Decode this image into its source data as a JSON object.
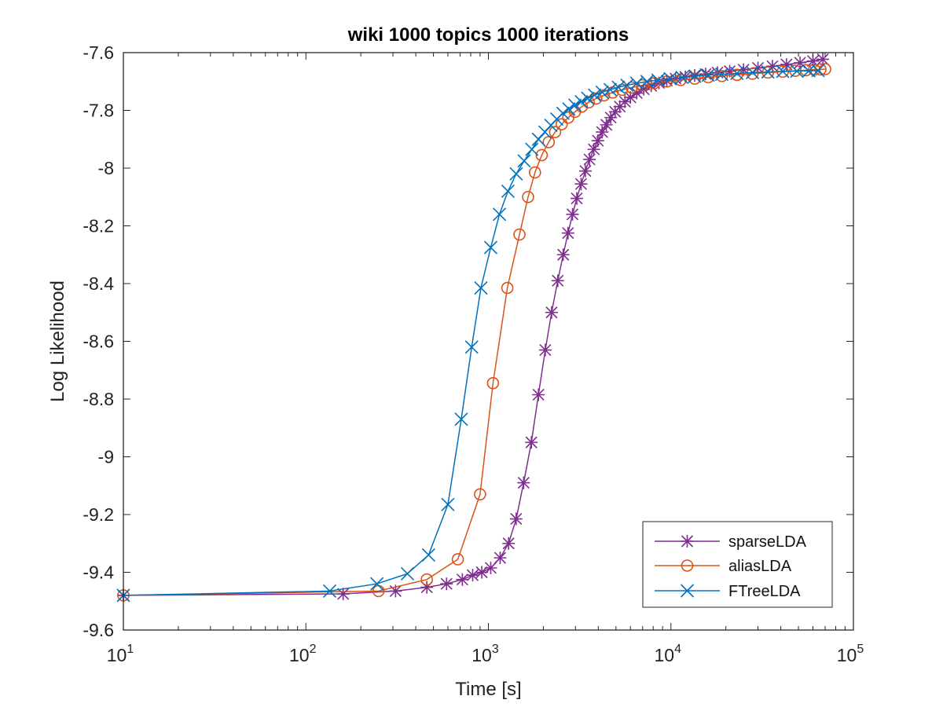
{
  "chart_data": {
    "type": "line",
    "title": "wiki 1000 topics 1000 iterations",
    "xlabel": "Time [s]",
    "ylabel": "Log Likelihood",
    "xscale": "log",
    "xlim": [
      10,
      100000
    ],
    "ylim": [
      -9.6,
      -7.6
    ],
    "x_ticks": [
      {
        "value": 10,
        "base": "10",
        "exp": "1"
      },
      {
        "value": 100,
        "base": "10",
        "exp": "2"
      },
      {
        "value": 1000,
        "base": "10",
        "exp": "3"
      },
      {
        "value": 10000,
        "base": "10",
        "exp": "4"
      },
      {
        "value": 100000,
        "base": "10",
        "exp": "5"
      }
    ],
    "y_ticks": [
      {
        "value": -7.6,
        "label": "-7.6"
      },
      {
        "value": -7.8,
        "label": "-7.8"
      },
      {
        "value": -8.0,
        "label": "-8"
      },
      {
        "value": -8.2,
        "label": "-8.2"
      },
      {
        "value": -8.4,
        "label": "-8.4"
      },
      {
        "value": -8.6,
        "label": "-8.6"
      },
      {
        "value": -8.8,
        "label": "-8.8"
      },
      {
        "value": -9.0,
        "label": "-9"
      },
      {
        "value": -9.2,
        "label": "-9.2"
      },
      {
        "value": -9.4,
        "label": "-9.4"
      },
      {
        "value": -9.6,
        "label": "-9.6"
      }
    ],
    "legend_position": "bottom-right",
    "series": [
      {
        "name": "sparseLDA",
        "color": "#7E2F8E",
        "marker": "asterisk",
        "points": [
          [
            10,
            -9.48
          ],
          [
            160,
            -9.475
          ],
          [
            310,
            -9.465
          ],
          [
            460,
            -9.452
          ],
          [
            590,
            -9.44
          ],
          [
            720,
            -9.425
          ],
          [
            820,
            -9.41
          ],
          [
            920,
            -9.4
          ],
          [
            1030,
            -9.385
          ],
          [
            1160,
            -9.35
          ],
          [
            1290,
            -9.3
          ],
          [
            1420,
            -9.215
          ],
          [
            1560,
            -9.09
          ],
          [
            1720,
            -8.95
          ],
          [
            1880,
            -8.785
          ],
          [
            2050,
            -8.63
          ],
          [
            2220,
            -8.5
          ],
          [
            2400,
            -8.39
          ],
          [
            2570,
            -8.3
          ],
          [
            2730,
            -8.225
          ],
          [
            2890,
            -8.16
          ],
          [
            3050,
            -8.105
          ],
          [
            3220,
            -8.055
          ],
          [
            3400,
            -8.01
          ],
          [
            3580,
            -7.97
          ],
          [
            3780,
            -7.935
          ],
          [
            3980,
            -7.905
          ],
          [
            4200,
            -7.875
          ],
          [
            4430,
            -7.85
          ],
          [
            4680,
            -7.825
          ],
          [
            4950,
            -7.805
          ],
          [
            5250,
            -7.787
          ],
          [
            5600,
            -7.77
          ],
          [
            6000,
            -7.755
          ],
          [
            6500,
            -7.74
          ],
          [
            7100,
            -7.727
          ],
          [
            7800,
            -7.715
          ],
          [
            8600,
            -7.705
          ],
          [
            9500,
            -7.697
          ],
          [
            10600,
            -7.69
          ],
          [
            12000,
            -7.684
          ],
          [
            13500,
            -7.679
          ],
          [
            15500,
            -7.674
          ],
          [
            18000,
            -7.669
          ],
          [
            21000,
            -7.664
          ],
          [
            25000,
            -7.659
          ],
          [
            30000,
            -7.653
          ],
          [
            36000,
            -7.647
          ],
          [
            43000,
            -7.641
          ],
          [
            51000,
            -7.635
          ],
          [
            60000,
            -7.629
          ],
          [
            68000,
            -7.623
          ]
        ]
      },
      {
        "name": "aliasLDA",
        "color": "#D95319",
        "marker": "circle",
        "points": [
          [
            10,
            -9.48
          ],
          [
            250,
            -9.465
          ],
          [
            460,
            -9.425
          ],
          [
            680,
            -9.355
          ],
          [
            900,
            -9.13
          ],
          [
            1060,
            -8.745
          ],
          [
            1270,
            -8.415
          ],
          [
            1480,
            -8.23
          ],
          [
            1650,
            -8.1
          ],
          [
            1800,
            -8.015
          ],
          [
            1960,
            -7.955
          ],
          [
            2140,
            -7.91
          ],
          [
            2320,
            -7.875
          ],
          [
            2520,
            -7.848
          ],
          [
            2740,
            -7.825
          ],
          [
            2980,
            -7.805
          ],
          [
            3250,
            -7.787
          ],
          [
            3550,
            -7.772
          ],
          [
            3900,
            -7.759
          ],
          [
            4300,
            -7.748
          ],
          [
            4800,
            -7.738
          ],
          [
            5400,
            -7.729
          ],
          [
            6100,
            -7.721
          ],
          [
            7000,
            -7.713
          ],
          [
            8100,
            -7.706
          ],
          [
            9500,
            -7.7
          ],
          [
            11300,
            -7.695
          ],
          [
            13500,
            -7.69
          ],
          [
            16000,
            -7.685
          ],
          [
            19000,
            -7.681
          ],
          [
            23000,
            -7.677
          ],
          [
            28000,
            -7.673
          ],
          [
            34000,
            -7.669
          ],
          [
            41000,
            -7.666
          ],
          [
            48000,
            -7.663
          ],
          [
            55000,
            -7.661
          ],
          [
            61000,
            -7.659
          ],
          [
            66000,
            -7.658
          ],
          [
            70000,
            -7.657
          ]
        ]
      },
      {
        "name": "FTreeLDA",
        "color": "#0072BD",
        "marker": "x",
        "points": [
          [
            10,
            -9.48
          ],
          [
            135,
            -9.465
          ],
          [
            245,
            -9.44
          ],
          [
            360,
            -9.405
          ],
          [
            470,
            -9.34
          ],
          [
            600,
            -9.165
          ],
          [
            710,
            -8.87
          ],
          [
            810,
            -8.62
          ],
          [
            910,
            -8.415
          ],
          [
            1030,
            -8.275
          ],
          [
            1150,
            -8.16
          ],
          [
            1280,
            -8.08
          ],
          [
            1420,
            -8.02
          ],
          [
            1570,
            -7.975
          ],
          [
            1730,
            -7.935
          ],
          [
            1880,
            -7.9
          ],
          [
            2040,
            -7.875
          ],
          [
            2200,
            -7.852
          ],
          [
            2370,
            -7.83
          ],
          [
            2560,
            -7.81
          ],
          [
            2760,
            -7.795
          ],
          [
            2980,
            -7.782
          ],
          [
            3230,
            -7.77
          ],
          [
            3500,
            -7.758
          ],
          [
            3820,
            -7.747
          ],
          [
            4200,
            -7.737
          ],
          [
            4650,
            -7.728
          ],
          [
            5150,
            -7.72
          ],
          [
            5750,
            -7.713
          ],
          [
            6500,
            -7.706
          ],
          [
            7400,
            -7.7
          ],
          [
            8500,
            -7.695
          ],
          [
            9900,
            -7.69
          ],
          [
            11500,
            -7.686
          ],
          [
            13500,
            -7.682
          ],
          [
            16000,
            -7.678
          ],
          [
            19000,
            -7.675
          ],
          [
            23000,
            -7.672
          ],
          [
            28000,
            -7.669
          ],
          [
            34000,
            -7.667
          ],
          [
            41000,
            -7.665
          ],
          [
            49000,
            -7.664
          ],
          [
            57000,
            -7.663
          ],
          [
            64000,
            -7.662
          ]
        ]
      }
    ]
  }
}
